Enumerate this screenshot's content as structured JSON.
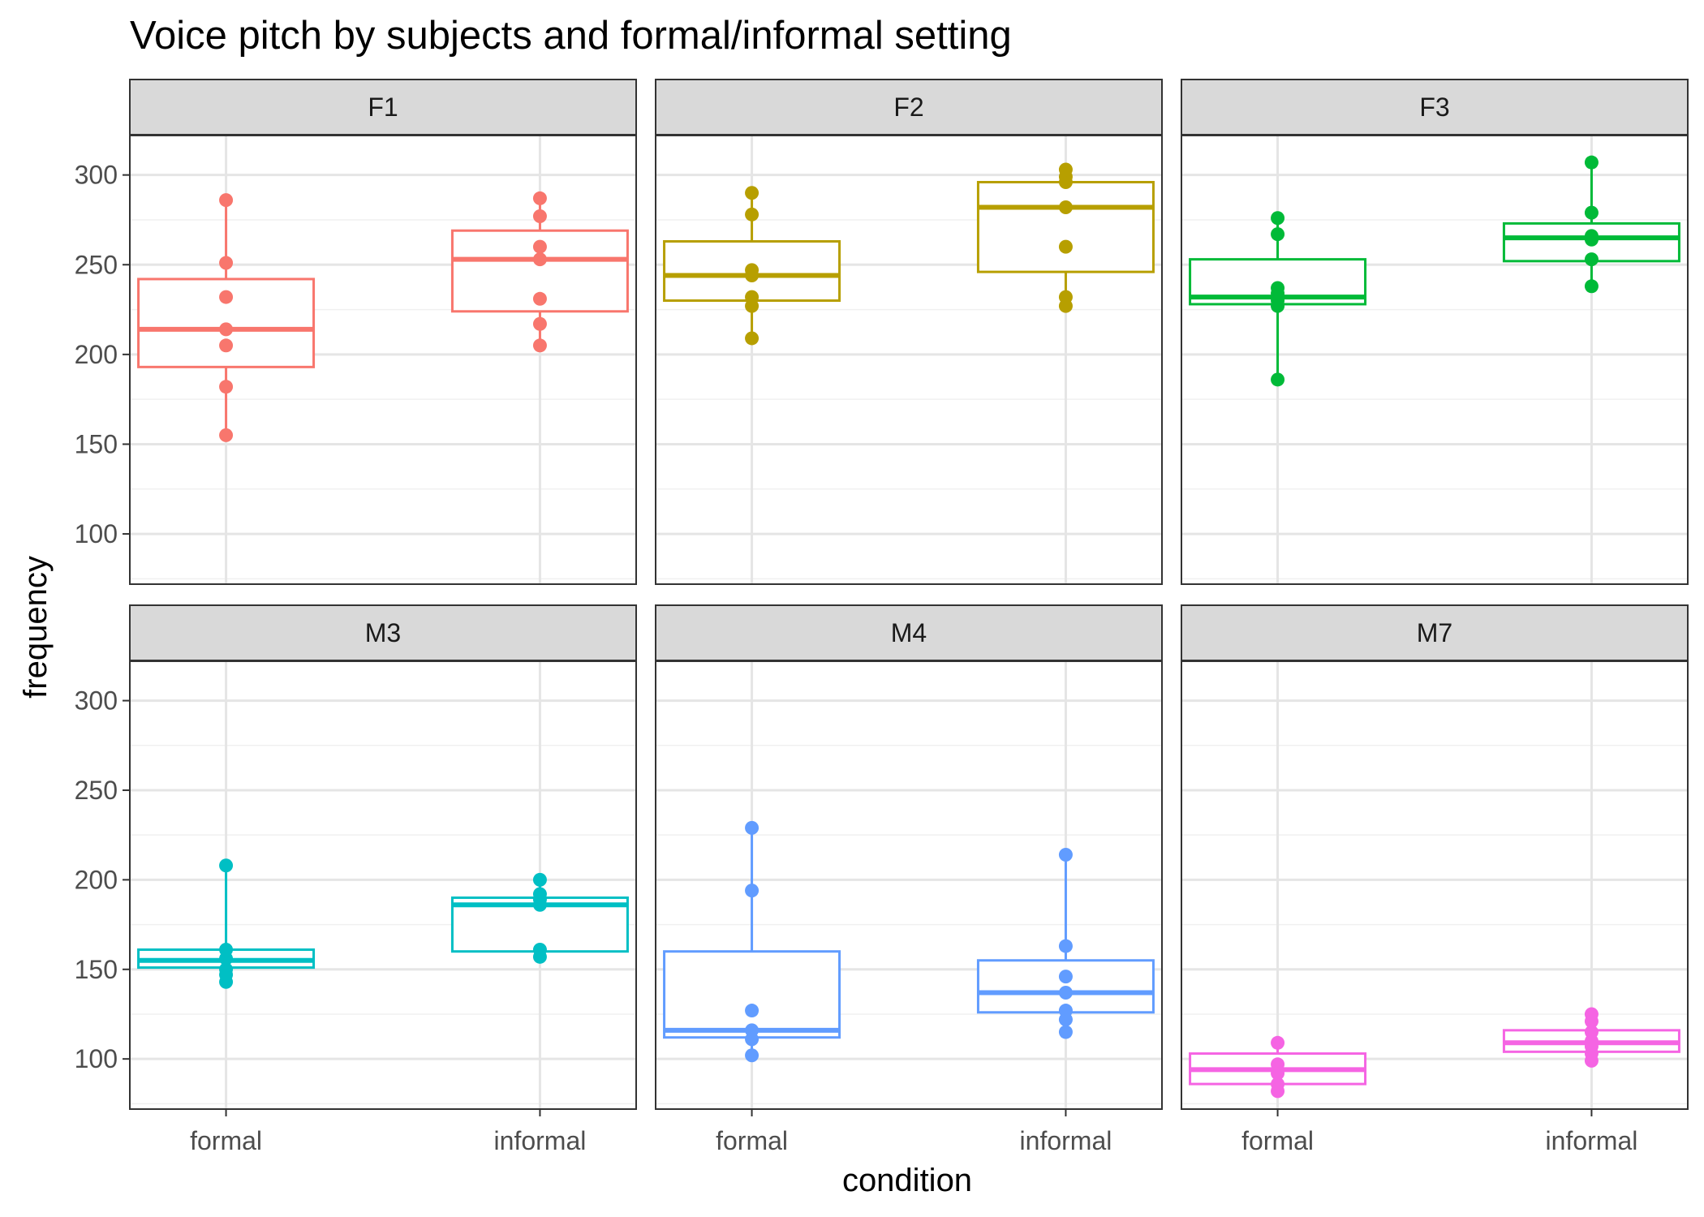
{
  "chart_data": {
    "type": "boxplot",
    "title": "Voice pitch by subjects and formal/informal setting",
    "xlabel": "condition",
    "ylabel": "frequency",
    "categories": [
      "formal",
      "informal"
    ],
    "ylim": [
      72,
      322
    ],
    "yticks": [
      100,
      150,
      200,
      250,
      300
    ],
    "grid": true,
    "layout": "2 rows x 3 columns of facets",
    "panels": [
      {
        "name": "F1",
        "color": "#F8766D",
        "groups": [
          {
            "category": "formal",
            "box": {
              "min": 155,
              "q1": 193,
              "median": 214,
              "q3": 242,
              "max": 286
            },
            "points": [
              155,
              182,
              205,
              214,
              232,
              251,
              286
            ]
          },
          {
            "category": "informal",
            "box": {
              "min": 205,
              "q1": 224,
              "median": 253,
              "q3": 269,
              "max": 287
            },
            "points": [
              205,
              217,
              231,
              253,
              260,
              277,
              287
            ]
          }
        ]
      },
      {
        "name": "F2",
        "color": "#B79F00",
        "groups": [
          {
            "category": "formal",
            "box": {
              "min": 209,
              "q1": 230,
              "median": 244,
              "q3": 263,
              "max": 290
            },
            "points": [
              209,
              227,
              232,
              244,
              247,
              278,
              290
            ]
          },
          {
            "category": "informal",
            "box": {
              "min": 227,
              "q1": 246,
              "median": 282,
              "q3": 296,
              "max": 303
            },
            "points": [
              227,
              232,
              260,
              282,
              296,
              299,
              303
            ]
          }
        ]
      },
      {
        "name": "F3",
        "color": "#00BA38",
        "groups": [
          {
            "category": "formal",
            "box": {
              "min": 186,
              "q1": 228,
              "median": 232,
              "q3": 253,
              "max": 276
            },
            "points": [
              186,
              227,
              230,
              234,
              237,
              267,
              276
            ]
          },
          {
            "category": "informal",
            "box": {
              "min": 238,
              "q1": 252,
              "median": 265,
              "q3": 273,
              "max": 307
            },
            "points": [
              238,
              253,
              264,
              266,
              279,
              307
            ]
          }
        ]
      },
      {
        "name": "M3",
        "color": "#00BFC4",
        "groups": [
          {
            "category": "formal",
            "box": {
              "min": 143,
              "q1": 151,
              "median": 155,
              "q3": 161,
              "max": 208
            },
            "points": [
              143,
              147,
              150,
              156,
              161,
              208
            ]
          },
          {
            "category": "informal",
            "box": {
              "min": 157,
              "q1": 160,
              "median": 186,
              "q3": 190,
              "max": 200
            },
            "points": [
              157,
              161,
              186,
              189,
              192,
              200
            ]
          }
        ]
      },
      {
        "name": "M4",
        "color": "#619CFF",
        "groups": [
          {
            "category": "formal",
            "box": {
              "min": 102,
              "q1": 112,
              "median": 116,
              "q3": 160,
              "max": 229
            },
            "points": [
              102,
              111,
              116,
              127,
              194,
              229
            ]
          },
          {
            "category": "informal",
            "box": {
              "min": 115,
              "q1": 126,
              "median": 137,
              "q3": 155,
              "max": 214
            },
            "points": [
              115,
              122,
              127,
              137,
              146,
              163,
              214
            ]
          }
        ]
      },
      {
        "name": "M7",
        "color": "#F564E3",
        "groups": [
          {
            "category": "formal",
            "box": {
              "min": 82,
              "q1": 86,
              "median": 94,
              "q3": 103,
              "max": 109
            },
            "points": [
              82,
              86,
              92,
              97,
              109
            ]
          },
          {
            "category": "informal",
            "box": {
              "min": 99,
              "q1": 104,
              "median": 109,
              "q3": 116,
              "max": 125
            },
            "points": [
              99,
              103,
              107,
              110,
              115,
              121,
              125
            ]
          }
        ]
      }
    ]
  }
}
